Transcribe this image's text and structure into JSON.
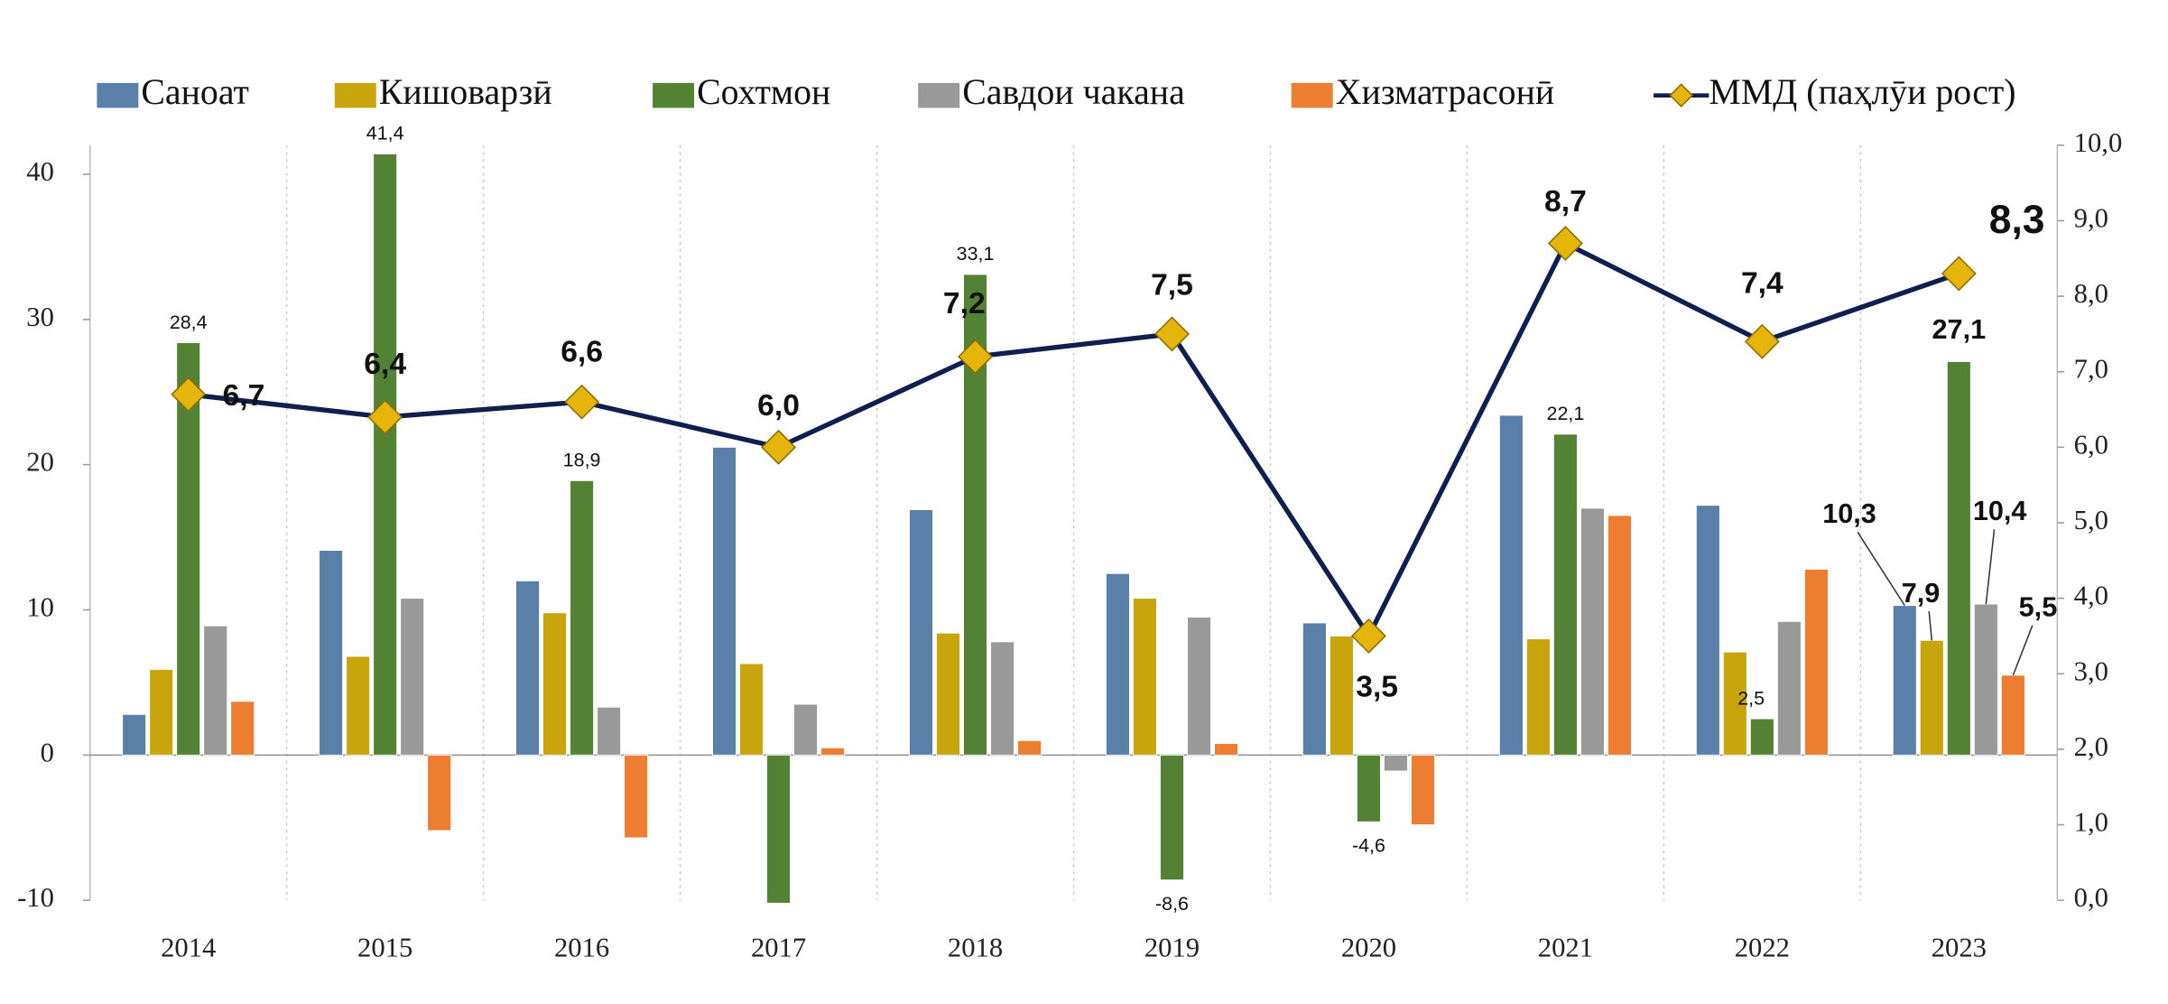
{
  "chart_data": {
    "type": "bar_line",
    "categories": [
      "2014",
      "2015",
      "2016",
      "2017",
      "2018",
      "2019",
      "2020",
      "2021",
      "2022",
      "2023"
    ],
    "series": [
      {
        "name": "Саноат",
        "color": "#5a7fa8",
        "values": [
          2.8,
          14.1,
          12.0,
          21.2,
          16.9,
          12.5,
          9.1,
          23.4,
          17.2,
          10.3
        ],
        "value_labels": [
          null,
          null,
          null,
          null,
          null,
          null,
          null,
          null,
          null,
          "10,3"
        ]
      },
      {
        "name": "Кишоварзӣ",
        "color": "#c8a50c",
        "values": [
          5.9,
          6.8,
          9.8,
          6.3,
          8.4,
          10.8,
          8.2,
          8.0,
          7.1,
          7.9
        ],
        "value_labels": [
          null,
          null,
          null,
          null,
          null,
          null,
          null,
          null,
          null,
          "7,9"
        ]
      },
      {
        "name": "Сохтмон",
        "color": "#548235",
        "values": [
          28.4,
          41.4,
          18.9,
          -10.2,
          33.1,
          -8.6,
          -4.6,
          22.1,
          2.5,
          27.1
        ],
        "value_labels": [
          "28,4",
          "41,4",
          "18,9",
          null,
          "33,1",
          "-8,6",
          "-4,6",
          "22,1",
          "2,5",
          "27,1"
        ]
      },
      {
        "name": "Савдои чакана",
        "color": "#999999",
        "values": [
          8.9,
          10.8,
          3.3,
          3.5,
          7.8,
          9.5,
          -1.1,
          17.0,
          9.2,
          10.4
        ],
        "value_labels": [
          null,
          null,
          null,
          null,
          null,
          null,
          null,
          null,
          null,
          "10,4"
        ]
      },
      {
        "name": "Хизматрасонӣ",
        "color": "#ed7d31",
        "values": [
          3.7,
          -5.2,
          -5.7,
          0.5,
          1.0,
          0.8,
          -4.8,
          16.5,
          12.8,
          5.5
        ],
        "value_labels": [
          null,
          null,
          null,
          null,
          null,
          null,
          null,
          null,
          null,
          "5,5"
        ]
      },
      {
        "name": "ММД (паҳлӯи рост)",
        "color": "#0e1f50",
        "marker_color": "#e5b50b",
        "axis": "y2",
        "line": true,
        "values": [
          6.7,
          6.4,
          6.6,
          6.0,
          7.2,
          7.5,
          3.5,
          8.7,
          7.4,
          8.3
        ],
        "value_labels": [
          "6,7",
          "6,4",
          "6,6",
          "6,0",
          "7,2",
          "7,5",
          "3,5",
          "8,7",
          "7,4",
          "8,3"
        ]
      }
    ],
    "ylim": [
      -10,
      42
    ],
    "yticks": [
      -10,
      0,
      10,
      20,
      30,
      40
    ],
    "y2lim": [
      0,
      10
    ],
    "y2ticks": [
      {
        "value": 0,
        "label": "0,0"
      },
      {
        "value": 1,
        "label": "1,0"
      },
      {
        "value": 2,
        "label": "2,0"
      },
      {
        "value": 3,
        "label": "3,0"
      },
      {
        "value": 4,
        "label": "4,0"
      },
      {
        "value": 5,
        "label": "5,0"
      },
      {
        "value": 6,
        "label": "6,0"
      },
      {
        "value": 7,
        "label": "7,0"
      },
      {
        "value": 8,
        "label": "8,0"
      },
      {
        "value": 9,
        "label": "9,0"
      },
      {
        "value": 10,
        "label": "10,0"
      }
    ],
    "legend": "top"
  }
}
